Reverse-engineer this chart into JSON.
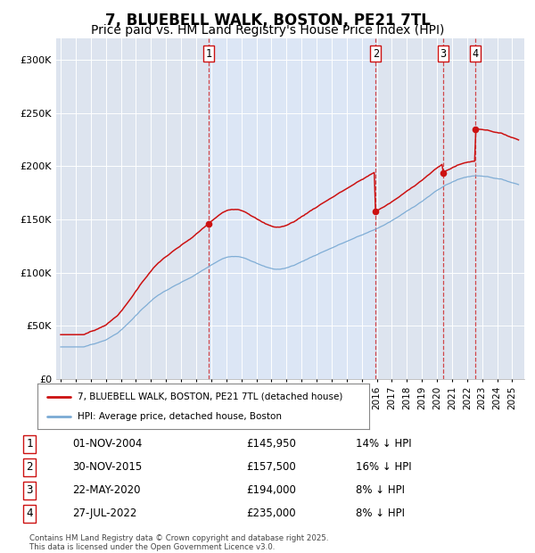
{
  "title": "7, BLUEBELL WALK, BOSTON, PE21 7TL",
  "subtitle": "Price paid vs. HM Land Registry's House Price Index (HPI)",
  "title_fontsize": 12,
  "subtitle_fontsize": 10,
  "background_color": "#ffffff",
  "plot_bg_color": "#dde4ef",
  "grid_color": "#ffffff",
  "hpi_color": "#7aaad4",
  "price_color": "#cc1111",
  "shade_color": "#dce6f5",
  "ylim": [
    0,
    320000
  ],
  "yticks": [
    0,
    50000,
    100000,
    150000,
    200000,
    250000,
    300000
  ],
  "ytick_labels": [
    "£0",
    "£50K",
    "£100K",
    "£150K",
    "£200K",
    "£250K",
    "£300K"
  ],
  "sale_dates_num": [
    2004.83,
    2015.92,
    2020.39,
    2022.56
  ],
  "sale_prices": [
    145950,
    157500,
    194000,
    235000
  ],
  "sale_labels": [
    "1",
    "2",
    "3",
    "4"
  ],
  "sale_date_strs": [
    "01-NOV-2004",
    "30-NOV-2015",
    "22-MAY-2020",
    "27-JUL-2022"
  ],
  "sale_price_strs": [
    "£145,950",
    "£157,500",
    "£194,000",
    "£235,000"
  ],
  "sale_pct_strs": [
    "14% ↓ HPI",
    "16% ↓ HPI",
    "8% ↓ HPI",
    "8% ↓ HPI"
  ],
  "legend_label_price": "7, BLUEBELL WALK, BOSTON, PE21 7TL (detached house)",
  "legend_label_hpi": "HPI: Average price, detached house, Boston",
  "footer1": "Contains HM Land Registry data © Crown copyright and database right 2025.",
  "footer2": "This data is licensed under the Open Government Licence v3.0."
}
